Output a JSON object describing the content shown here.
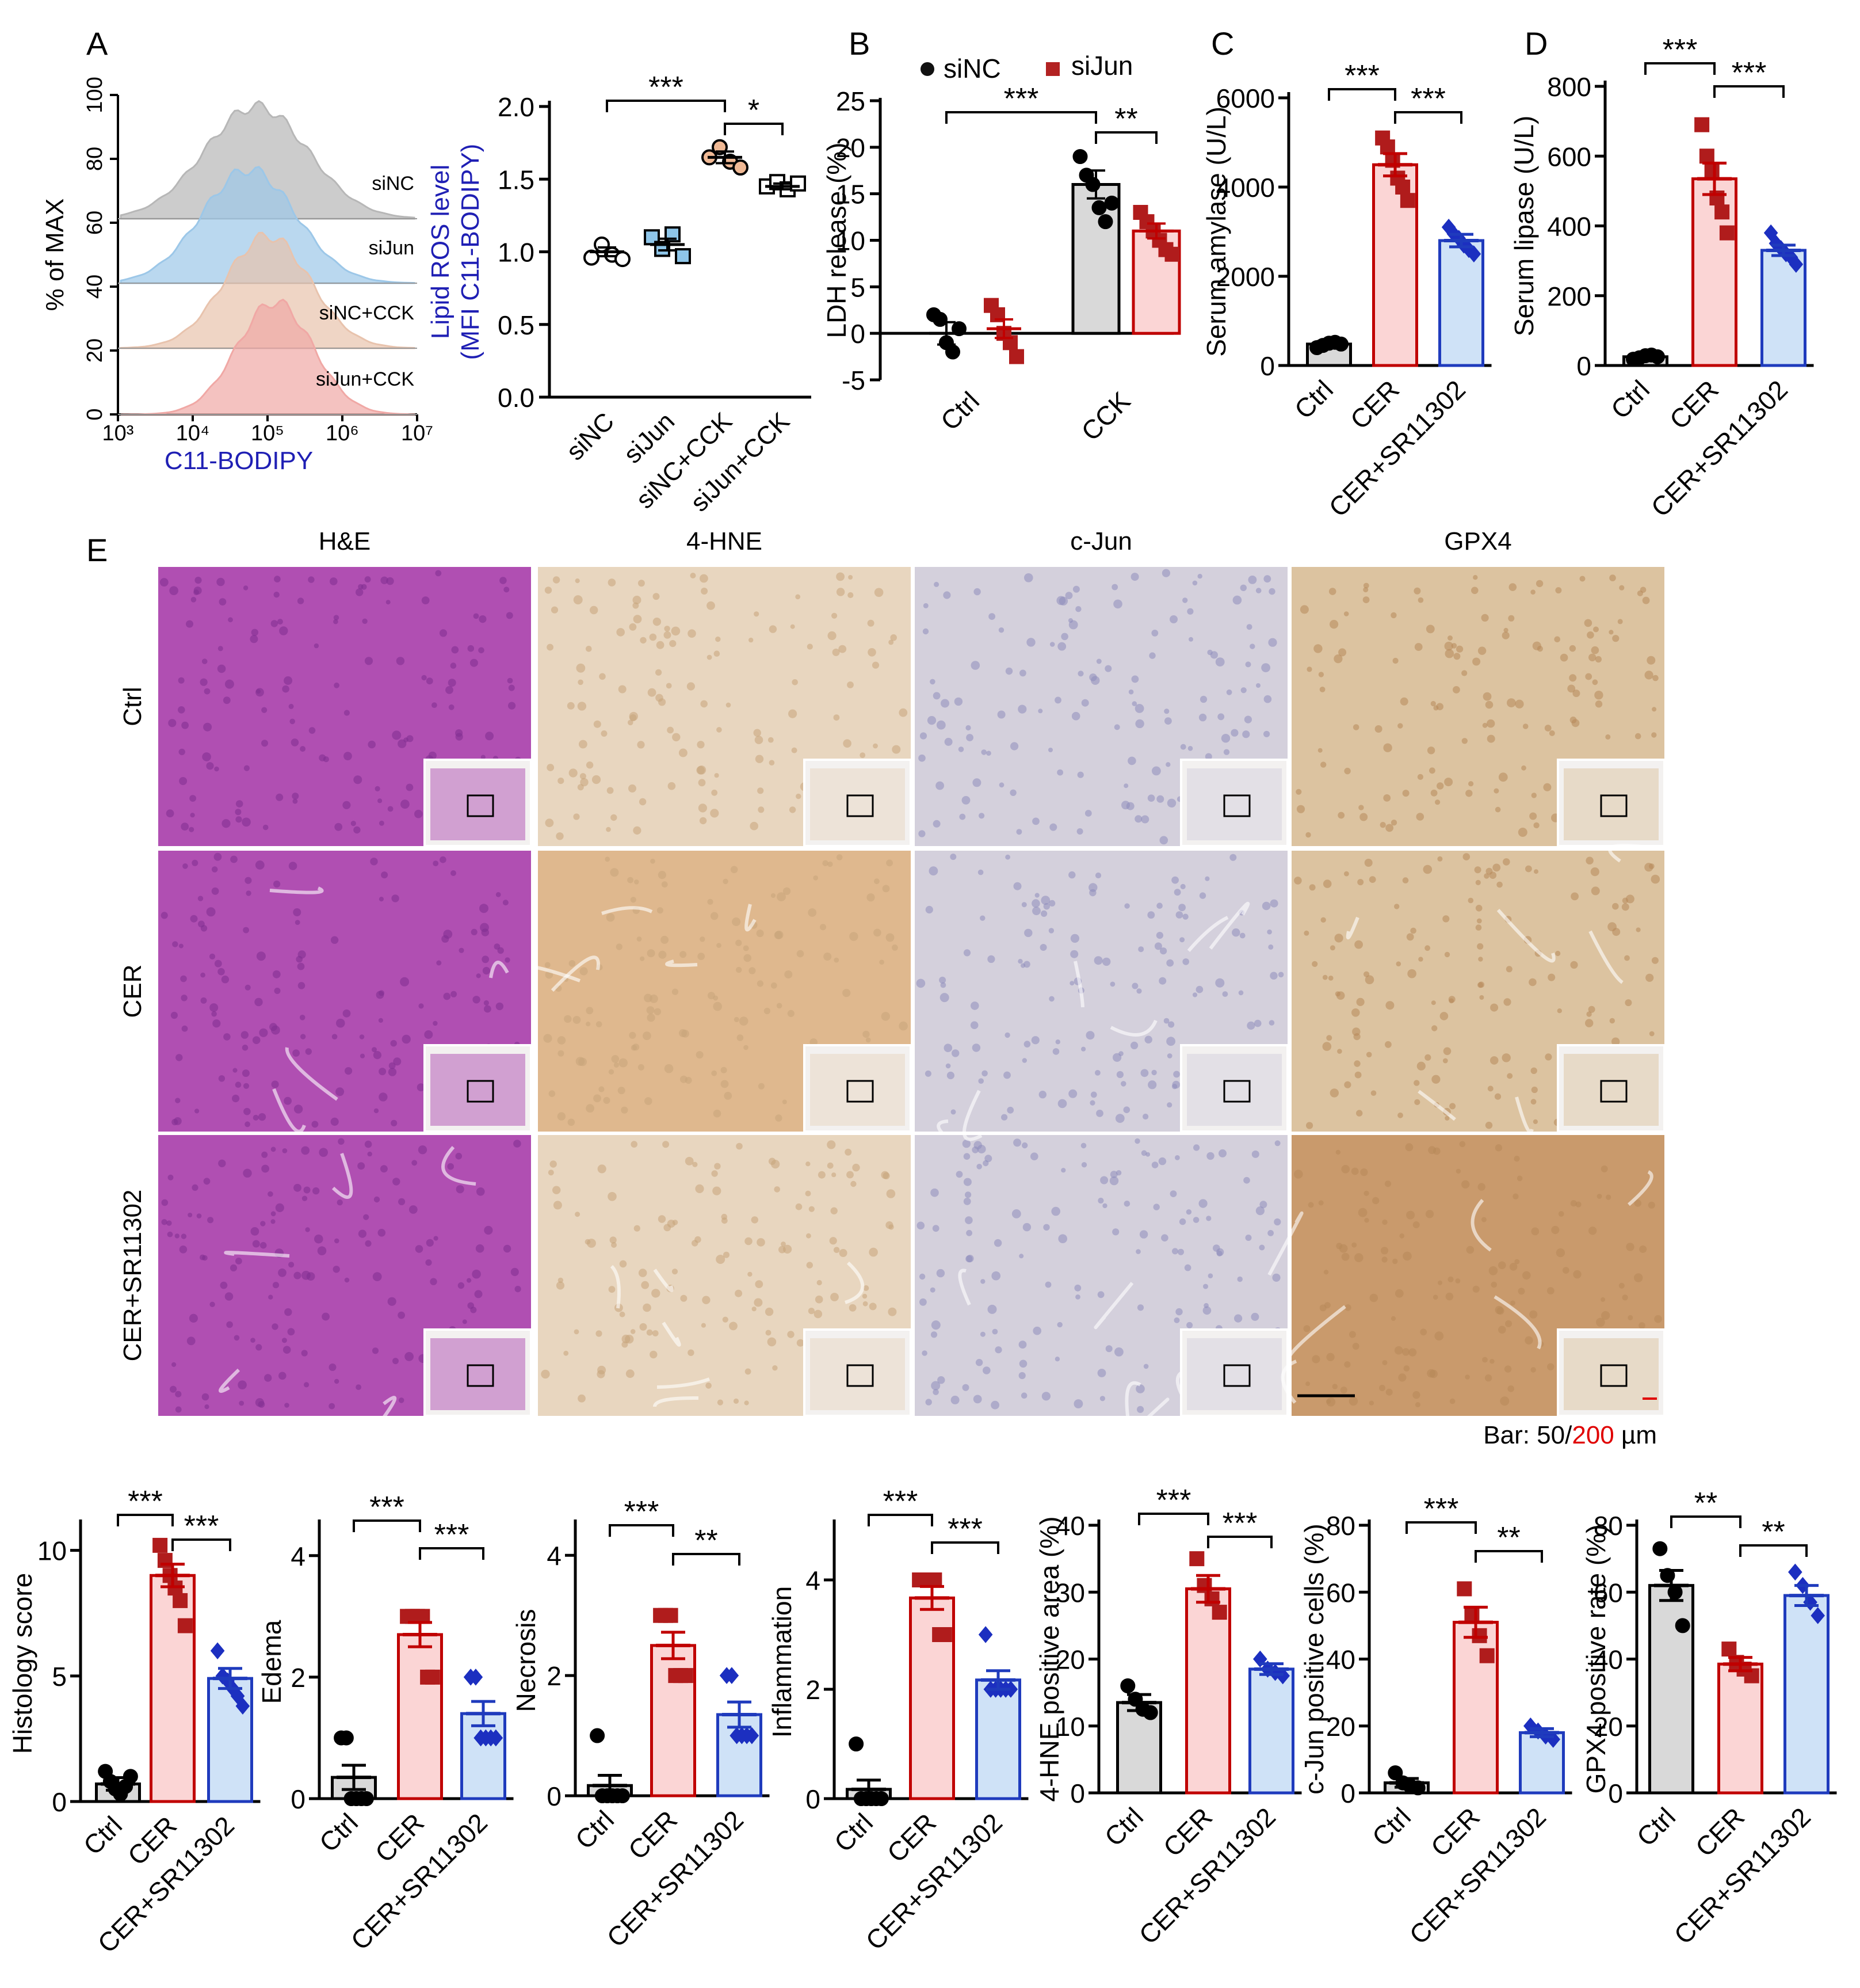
{
  "panel_letters": [
    "A",
    "B",
    "C",
    "D",
    "E"
  ],
  "chart_data": [
    {
      "id": "A1",
      "type": "histogram",
      "ylabel": "% of MAX",
      "xlabel": "C11-BODIPY",
      "xlabel_color": "#1f1fb4",
      "yticks": [
        "0",
        "20",
        "40",
        "60",
        "80",
        "100"
      ],
      "xticks": [
        "10³",
        "10⁴",
        "10⁵",
        "10⁶",
        "10⁷"
      ],
      "xscale": "log",
      "xlim": [
        3,
        7
      ],
      "series": [
        {
          "name": "siNC",
          "color": "#b7b7b7",
          "peak_log": 4.85
        },
        {
          "name": "siJun",
          "color": "#9cc7e8",
          "peak_log": 4.75
        },
        {
          "name": "siNC+CCK",
          "color": "#e8c3ad",
          "peak_log": 5.0
        },
        {
          "name": "siJun+CCK",
          "color": "#f0a8a5",
          "peak_log": 5.1
        }
      ]
    },
    {
      "id": "A2",
      "type": "scatter",
      "ylabel_lines": [
        "Lipid ROS level",
        "(MFI C11-BODIPY)"
      ],
      "ylabel_color": "#1f1fb4",
      "ylim": [
        0,
        2.0
      ],
      "yticks": [
        "0.0",
        "0.5",
        "1.0",
        "1.5",
        "2.0"
      ],
      "categories": [
        "siNC",
        "siJun",
        "siNC+CCK",
        "siJun+CCK"
      ],
      "colors": [
        "#ffffff",
        "#8ec5e8",
        "#f0b995",
        "#ffffff"
      ],
      "points": [
        [
          0.96,
          1.05,
          0.98,
          0.95
        ],
        [
          1.1,
          1.02,
          1.12,
          0.97
        ],
        [
          1.65,
          1.72,
          1.62,
          1.58
        ],
        [
          1.45,
          1.48,
          1.43,
          1.47
        ]
      ],
      "means": [
        1.0,
        1.05,
        1.65,
        1.45
      ],
      "sems": [
        0.03,
        0.04,
        0.04,
        0.02
      ],
      "sig": [
        {
          "from": 0,
          "to": 2,
          "label": "***"
        },
        {
          "from": 2,
          "to": 3,
          "label": "*"
        }
      ]
    },
    {
      "id": "B",
      "type": "bar",
      "ylabel": "LDH release (%)",
      "ylim": [
        -5,
        25
      ],
      "yticks": [
        "-5",
        "0",
        "5",
        "10",
        "15",
        "20",
        "25"
      ],
      "categories": [
        "Ctrl",
        "CCK"
      ],
      "legend": [
        "siNC",
        "siJun"
      ],
      "legend_colors": [
        "#111111",
        "#b22222"
      ],
      "series": [
        {
          "name": "siNC",
          "values": [
            0,
            16
          ],
          "sems": [
            1.2,
            1.5
          ],
          "points": [
            [
              2,
              1.5,
              -1,
              -2,
              0.5
            ],
            [
              19,
              17,
              16,
              13.5,
              12,
              14
            ]
          ]
        },
        {
          "name": "siJun",
          "values": [
            0.5,
            11
          ],
          "sems": [
            1.0,
            0.8
          ],
          "points": [
            [
              3,
              2,
              0,
              -1,
              -2.5
            ],
            [
              13,
              12,
              11,
              10,
              9,
              8.5
            ]
          ]
        }
      ],
      "sig": [
        {
          "from": "siNC-Ctrl",
          "to": "siNC-CCK",
          "label": "***"
        },
        {
          "from": "siNC-CCK",
          "to": "siJun-CCK",
          "label": "**"
        }
      ]
    },
    {
      "id": "C",
      "type": "bar",
      "ylabel": "Serum amylase (U/L)",
      "ylim": [
        0,
        6000
      ],
      "yticks": [
        "0",
        "2000",
        "4000",
        "6000"
      ],
      "categories": [
        "Ctrl",
        "CER",
        "CER+SR11302"
      ],
      "values": [
        480,
        4500,
        2800
      ],
      "sems": [
        60,
        250,
        140
      ],
      "points": [
        [
          400,
          450,
          500,
          520,
          480
        ],
        [
          5100,
          4900,
          4600,
          4200,
          4000,
          3700
        ],
        [
          3100,
          2950,
          2850,
          2700,
          2600,
          2500
        ]
      ],
      "sig": [
        {
          "from": 0,
          "to": 1,
          "label": "***"
        },
        {
          "from": 1,
          "to": 2,
          "label": "***"
        }
      ]
    },
    {
      "id": "D",
      "type": "bar",
      "ylabel": "Serum lipase (U/L)",
      "ylim": [
        0,
        800
      ],
      "yticks": [
        "0",
        "200",
        "400",
        "600",
        "800"
      ],
      "categories": [
        "Ctrl",
        "CER",
        "CER+SR11302"
      ],
      "values": [
        25,
        535,
        330
      ],
      "sems": [
        5,
        45,
        15
      ],
      "points": [
        [
          18,
          22,
          28,
          30,
          25
        ],
        [
          690,
          600,
          560,
          480,
          440,
          380
        ],
        [
          380,
          350,
          335,
          320,
          310,
          290
        ]
      ],
      "sig": [
        {
          "from": 0,
          "to": 1,
          "label": "***"
        },
        {
          "from": 1,
          "to": 2,
          "label": "***"
        }
      ]
    },
    {
      "id": "E1",
      "type": "bar",
      "ylabel": "Histology score",
      "ylim": [
        0,
        11
      ],
      "yticks": [
        "0",
        "5",
        "10"
      ],
      "categories": [
        "Ctrl",
        "CER",
        "CER+SR11302"
      ],
      "values": [
        0.7,
        9.0,
        4.9
      ],
      "sems": [
        0.25,
        0.45,
        0.4
      ],
      "points": [
        [
          1.2,
          0.8,
          0.5,
          0.3,
          0.6,
          1.0
        ],
        [
          10.2,
          9.6,
          9.0,
          8.5,
          8.0,
          7.0
        ],
        [
          6.0,
          5.0,
          4.8,
          4.5,
          4.2,
          3.8
        ]
      ],
      "sig": [
        {
          "from": 0,
          "to": 1,
          "label": "***"
        },
        {
          "from": 1,
          "to": 2,
          "label": "***"
        }
      ]
    },
    {
      "id": "E2",
      "type": "bar",
      "ylabel": "Edema",
      "ylim": [
        0,
        4.5
      ],
      "yticks": [
        "0",
        "2",
        "4"
      ],
      "categories": [
        "Ctrl",
        "CER",
        "CER+SR11302"
      ],
      "values": [
        0.35,
        2.7,
        1.4
      ],
      "sems": [
        0.2,
        0.2,
        0.2
      ],
      "points": [
        [
          1,
          1,
          0,
          0,
          0,
          0
        ],
        [
          3,
          3,
          3,
          3,
          2,
          2
        ],
        [
          2,
          2,
          1,
          1,
          1,
          1
        ]
      ],
      "sig": [
        {
          "from": 0,
          "to": 1,
          "label": "***"
        },
        {
          "from": 1,
          "to": 2,
          "label": "***"
        }
      ]
    },
    {
      "id": "E3",
      "type": "bar",
      "ylabel": "Necrosis",
      "ylim": [
        0,
        4.5
      ],
      "yticks": [
        "0",
        "2",
        "4"
      ],
      "categories": [
        "Ctrl",
        "CER",
        "CER+SR11302"
      ],
      "values": [
        0.17,
        2.5,
        1.35
      ],
      "sems": [
        0.17,
        0.22,
        0.21
      ],
      "points": [
        [
          1,
          0,
          0,
          0,
          0,
          0
        ],
        [
          3,
          3,
          3,
          2,
          2,
          2
        ],
        [
          2,
          2,
          1,
          1,
          1,
          1
        ]
      ],
      "sig": [
        {
          "from": 0,
          "to": 1,
          "label": "***"
        },
        {
          "from": 1,
          "to": 2,
          "label": "**"
        }
      ]
    },
    {
      "id": "E4",
      "type": "bar",
      "ylabel": "Inflammation",
      "ylim": [
        0,
        5
      ],
      "yticks": [
        "0",
        "2",
        "4"
      ],
      "categories": [
        "Ctrl",
        "CER",
        "CER+SR11302"
      ],
      "values": [
        0.17,
        3.67,
        2.17
      ],
      "sems": [
        0.17,
        0.21,
        0.17
      ],
      "points": [
        [
          1,
          0,
          0,
          0,
          0,
          0
        ],
        [
          4,
          4,
          4,
          4,
          3,
          3
        ],
        [
          3,
          2,
          2,
          2,
          2,
          2
        ]
      ],
      "sig": [
        {
          "from": 0,
          "to": 1,
          "label": "***"
        },
        {
          "from": 1,
          "to": 2,
          "label": "***"
        }
      ]
    },
    {
      "id": "E5",
      "type": "bar",
      "ylabel": "4-HNE positive area (%)",
      "ylim": [
        0,
        40
      ],
      "yticks": [
        "0",
        "10",
        "20",
        "30",
        "40"
      ],
      "categories": [
        "Ctrl",
        "CER",
        "CER+SR11302"
      ],
      "values": [
        13.5,
        30.5,
        18.5
      ],
      "sems": [
        1.2,
        2.0,
        0.8
      ],
      "points": [
        [
          16,
          14,
          12.5,
          12
        ],
        [
          35,
          31,
          29,
          27
        ],
        [
          20,
          18.5,
          18,
          17.5
        ]
      ],
      "sig": [
        {
          "from": 0,
          "to": 1,
          "label": "***"
        },
        {
          "from": 1,
          "to": 2,
          "label": "***"
        }
      ]
    },
    {
      "id": "E6",
      "type": "bar",
      "ylabel": "c-Jun positive cells (%)",
      "ylim": [
        0,
        80
      ],
      "yticks": [
        "0",
        "20",
        "40",
        "60",
        "80"
      ],
      "categories": [
        "Ctrl",
        "CER",
        "CER+SR11302"
      ],
      "values": [
        3,
        51,
        18
      ],
      "sems": [
        1.3,
        4.5,
        1.2
      ],
      "points": [
        [
          6,
          3,
          2,
          1.5
        ],
        [
          61,
          53,
          47,
          41
        ],
        [
          20,
          18.5,
          17,
          16
        ]
      ],
      "sig": [
        {
          "from": 0,
          "to": 1,
          "label": "***"
        },
        {
          "from": 1,
          "to": 2,
          "label": "**"
        }
      ]
    },
    {
      "id": "E7",
      "type": "bar",
      "ylabel": "GPX4 positive rate (%)",
      "ylim": [
        0,
        80
      ],
      "yticks": [
        "0",
        "20",
        "40",
        "60",
        "80"
      ],
      "categories": [
        "Ctrl",
        "CER",
        "CER+SR11302"
      ],
      "values": [
        62,
        38.5,
        59
      ],
      "sems": [
        4.5,
        2.0,
        3.0
      ],
      "points": [
        [
          73,
          65,
          60,
          50
        ],
        [
          43,
          39,
          37,
          35
        ],
        [
          66,
          62,
          57,
          53
        ]
      ],
      "sig": [
        {
          "from": 0,
          "to": 1,
          "label": "**"
        },
        {
          "from": 1,
          "to": 2,
          "label": "**"
        }
      ]
    }
  ],
  "histology": {
    "columns": [
      "H&E",
      "4-HNE",
      "c-Jun",
      "GPX4"
    ],
    "rows": [
      "Ctrl",
      "CER",
      "CER+SR11302"
    ],
    "scale_bar_prefix": "Bar: 50/",
    "scale_bar_red": "200",
    "scale_bar_suffix": " µm"
  },
  "colors": {
    "ctrl_fill": "#d9d9d9",
    "cer_fill": "#fbd5d5",
    "cer_edge": "#c00000",
    "sr_fill": "#cfe2f7",
    "sr_edge": "#1f3bbd",
    "cer_pt": "#b01c1c",
    "sr_pt": "#1c2fc0"
  }
}
